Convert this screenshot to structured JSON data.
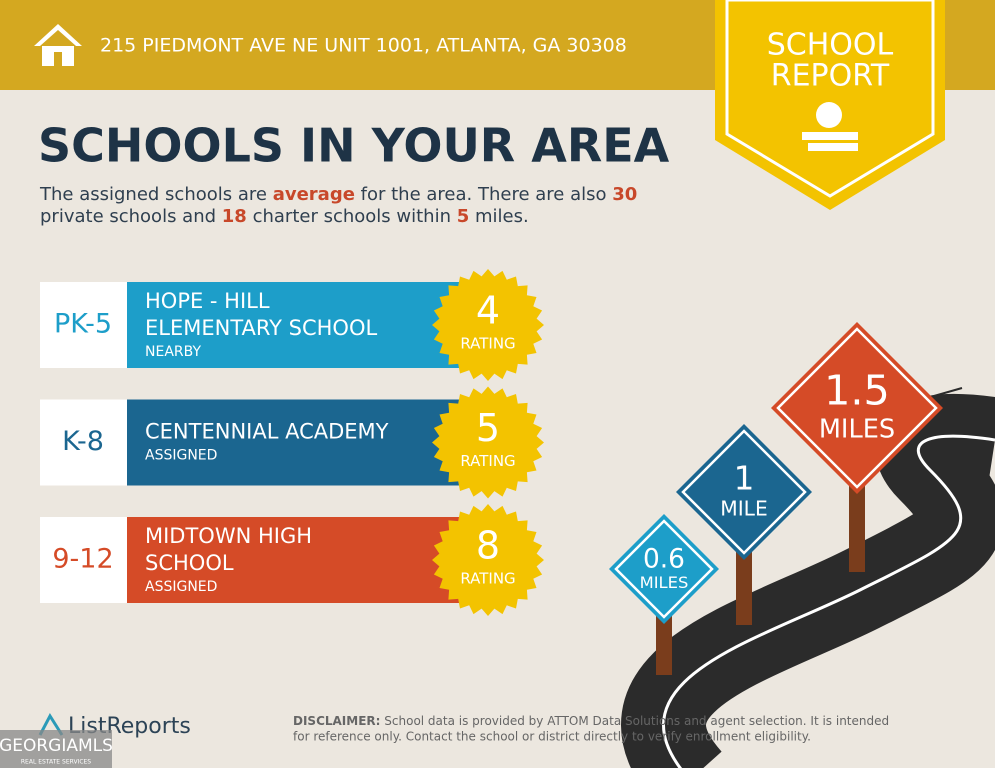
{
  "header": {
    "address": "215 PIEDMONT AVE NE UNIT 1001, ATLANTA, GA 30308"
  },
  "badge": {
    "lines": [
      "SCHOOL",
      "REPORT"
    ]
  },
  "title": "SCHOOLS IN YOUR AREA",
  "intro": {
    "lines": [
      [
        {
          "text": "The assigned schools are"
        },
        {
          "text": "average",
          "highlight": true
        },
        {
          "text": "for the area. There are also"
        },
        {
          "text": "30",
          "highlight": true
        }
      ],
      [
        {
          "text": "private schools and"
        },
        {
          "text": "18",
          "highlight": true
        },
        {
          "text": "charter schools within"
        },
        {
          "text": "5",
          "highlight": true
        },
        {
          "text": "miles."
        }
      ]
    ]
  },
  "schools": [
    {
      "grades": "PK-5",
      "name_lines": [
        "HOPE - HILL",
        "ELEMENTARY SCHOOL"
      ],
      "status": "NEARBY",
      "rating": 4,
      "rating_label": "RATING",
      "color": "#1d9ec9"
    },
    {
      "grades": "K-8",
      "name_lines": [
        "CENTENNIAL ACADEMY"
      ],
      "status": "ASSIGNED",
      "rating": 5,
      "rating_label": "RATING",
      "color": "#1b6690"
    },
    {
      "grades": "9-12",
      "name_lines": [
        "MIDTOWN HIGH",
        "SCHOOL"
      ],
      "status": "ASSIGNED",
      "rating": 8,
      "rating_label": "RATING",
      "color": "#d54b27"
    }
  ],
  "signs": [
    {
      "distance": 0.6,
      "unit": "MILES",
      "color": "#1d9ec9"
    },
    {
      "distance": 1,
      "unit": "MILE",
      "color": "#1b6690"
    },
    {
      "distance": 1.5,
      "unit": "MILES",
      "color": "#d54b27"
    }
  ],
  "footer": {
    "brand": "ListReports",
    "disclaimer_label": "DISCLAIMER:",
    "disclaimer_lines": [
      "School data is provided by ATTOM Data Solutions and agent selection. It is intended",
      "for reference only. Contact the school or district directly to verify enrollment eligibility."
    ],
    "watermark": "GEORGIAMLS",
    "watermark_sub": "REAL ESTATE SERVICES"
  }
}
